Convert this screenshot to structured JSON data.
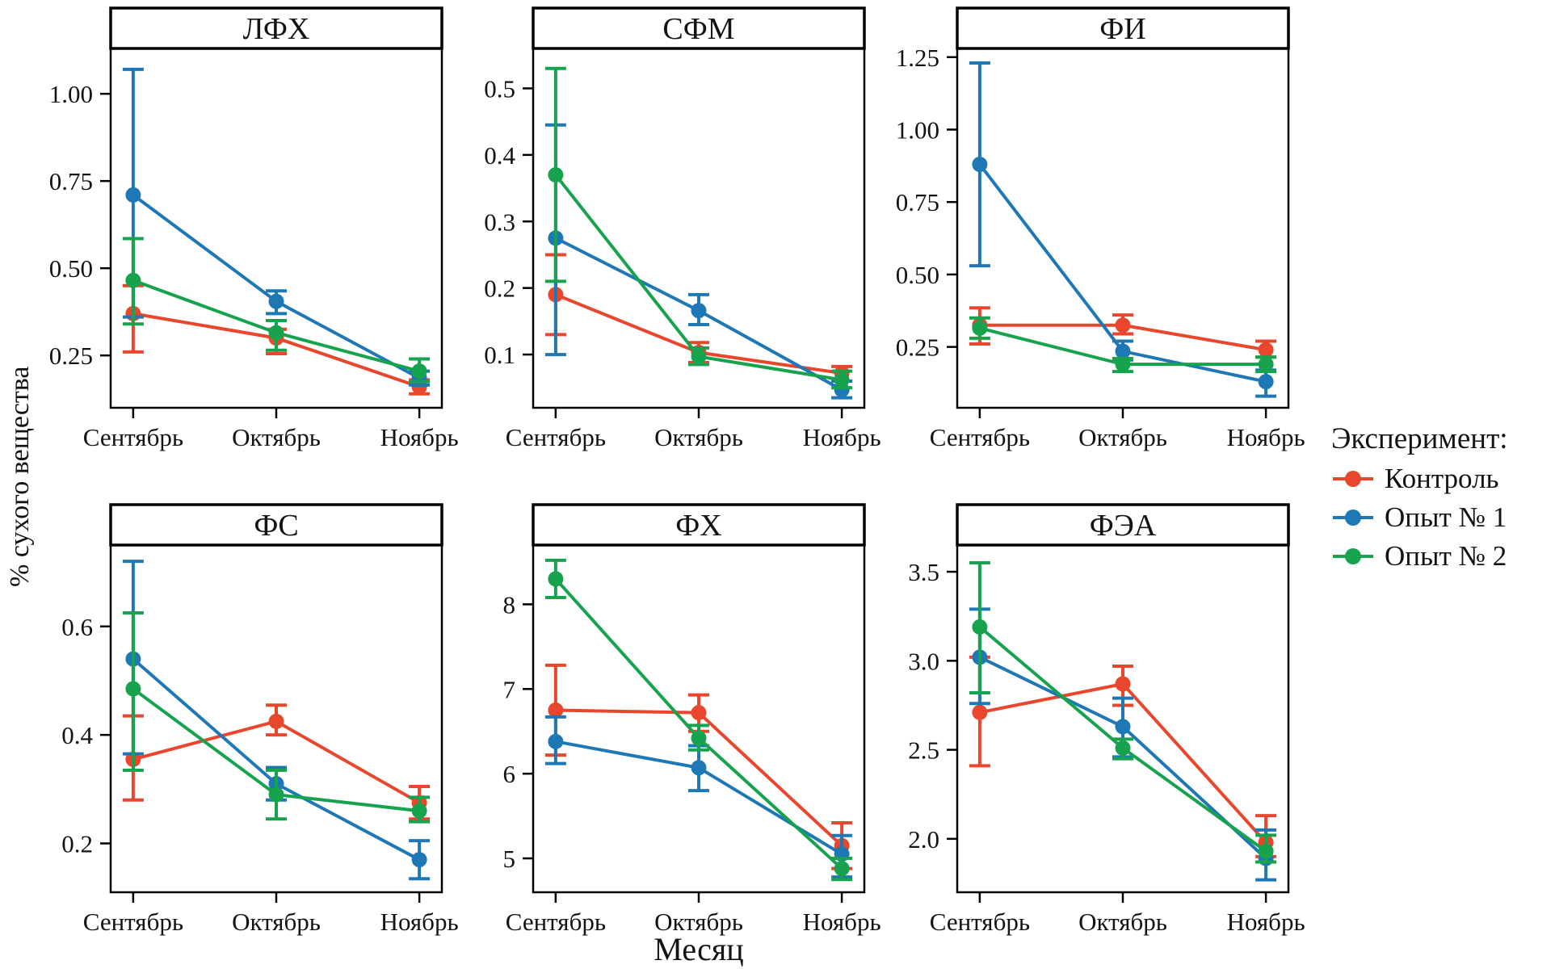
{
  "figure": {
    "y_axis_label": "% сухого вещества",
    "x_axis_label": "Месяц",
    "legend": {
      "title": "Эксперимент:",
      "items": [
        {
          "label": "Контроль",
          "color": "#E8462D"
        },
        {
          "label": "Опыт № 1",
          "color": "#1E78B5"
        },
        {
          "label": "Опыт № 2",
          "color": "#17A34E"
        }
      ]
    }
  },
  "chart_data": [
    {
      "type": "line",
      "title": "ЛФХ",
      "categories": [
        "Сентябрь",
        "Октябрь",
        "Ноябрь"
      ],
      "ylim": [
        0.1,
        1.13
      ],
      "yticks": [
        0.25,
        0.5,
        0.75,
        1.0
      ],
      "ytick_labels": [
        "0.25",
        "0.50",
        "0.75",
        "1.00"
      ],
      "series": [
        {
          "name": "Контроль",
          "color": "#E8462D",
          "values": [
            0.37,
            0.3,
            0.16
          ],
          "err_low": [
            0.26,
            0.255,
            0.14
          ],
          "err_high": [
            0.45,
            0.325,
            0.18
          ]
        },
        {
          "name": "Опыт № 1",
          "color": "#1E78B5",
          "values": [
            0.71,
            0.405,
            0.185
          ],
          "err_low": [
            0.36,
            0.37,
            0.165
          ],
          "err_high": [
            1.07,
            0.435,
            0.205
          ]
        },
        {
          "name": "Опыт № 2",
          "color": "#17A34E",
          "values": [
            0.465,
            0.315,
            0.205
          ],
          "err_low": [
            0.34,
            0.265,
            0.175
          ],
          "err_high": [
            0.585,
            0.35,
            0.24
          ]
        }
      ]
    },
    {
      "type": "line",
      "title": "СФМ",
      "categories": [
        "Сентябрь",
        "Октябрь",
        "Ноябрь"
      ],
      "ylim": [
        0.02,
        0.56
      ],
      "yticks": [
        0.1,
        0.2,
        0.3,
        0.4,
        0.5
      ],
      "ytick_labels": [
        "0.1",
        "0.2",
        "0.3",
        "0.4",
        "0.5"
      ],
      "series": [
        {
          "name": "Контроль",
          "color": "#E8462D",
          "values": [
            0.19,
            0.103,
            0.072
          ],
          "err_low": [
            0.13,
            0.088,
            0.06
          ],
          "err_high": [
            0.25,
            0.118,
            0.082
          ]
        },
        {
          "name": "Опыт № 1",
          "color": "#1E78B5",
          "values": [
            0.275,
            0.166,
            0.047
          ],
          "err_low": [
            0.1,
            0.145,
            0.035
          ],
          "err_high": [
            0.445,
            0.19,
            0.06
          ]
        },
        {
          "name": "Опыт № 2",
          "color": "#17A34E",
          "values": [
            0.37,
            0.097,
            0.062
          ],
          "err_low": [
            0.21,
            0.085,
            0.05
          ],
          "err_high": [
            0.53,
            0.11,
            0.075
          ]
        }
      ]
    },
    {
      "type": "line",
      "title": "ФИ",
      "categories": [
        "Сентябрь",
        "Октябрь",
        "Ноябрь"
      ],
      "ylim": [
        0.04,
        1.28
      ],
      "yticks": [
        0.25,
        0.5,
        0.75,
        1.0,
        1.25
      ],
      "ytick_labels": [
        "0.25",
        "0.50",
        "0.75",
        "1.00",
        "1.25"
      ],
      "series": [
        {
          "name": "Контроль",
          "color": "#E8462D",
          "values": [
            0.325,
            0.325,
            0.24
          ],
          "err_low": [
            0.26,
            0.295,
            0.215
          ],
          "err_high": [
            0.385,
            0.36,
            0.27
          ]
        },
        {
          "name": "Опыт № 1",
          "color": "#1E78B5",
          "values": [
            0.88,
            0.235,
            0.13
          ],
          "err_low": [
            0.53,
            0.205,
            0.08
          ],
          "err_high": [
            1.23,
            0.27,
            0.17
          ]
        },
        {
          "name": "Опыт № 2",
          "color": "#17A34E",
          "values": [
            0.315,
            0.19,
            0.19
          ],
          "err_low": [
            0.28,
            0.165,
            0.165
          ],
          "err_high": [
            0.35,
            0.21,
            0.215
          ]
        }
      ]
    },
    {
      "type": "line",
      "title": "ФС",
      "categories": [
        "Сентябрь",
        "Октябрь",
        "Ноябрь"
      ],
      "ylim": [
        0.11,
        0.75
      ],
      "yticks": [
        0.2,
        0.4,
        0.6
      ],
      "ytick_labels": [
        "0.2",
        "0.4",
        "0.6"
      ],
      "series": [
        {
          "name": "Контроль",
          "color": "#E8462D",
          "values": [
            0.355,
            0.425,
            0.275
          ],
          "err_low": [
            0.28,
            0.4,
            0.245
          ],
          "err_high": [
            0.435,
            0.455,
            0.305
          ]
        },
        {
          "name": "Опыт № 1",
          "color": "#1E78B5",
          "values": [
            0.54,
            0.31,
            0.17
          ],
          "err_low": [
            0.365,
            0.28,
            0.135
          ],
          "err_high": [
            0.72,
            0.34,
            0.205
          ]
        },
        {
          "name": "Опыт № 2",
          "color": "#17A34E",
          "values": [
            0.485,
            0.29,
            0.26
          ],
          "err_low": [
            0.335,
            0.245,
            0.24
          ],
          "err_high": [
            0.625,
            0.335,
            0.285
          ]
        }
      ]
    },
    {
      "type": "line",
      "title": "ФХ",
      "categories": [
        "Сентябрь",
        "Октябрь",
        "Ноябрь"
      ],
      "ylim": [
        4.6,
        8.7
      ],
      "yticks": [
        5,
        6,
        7,
        8
      ],
      "ytick_labels": [
        "5",
        "6",
        "7",
        "8"
      ],
      "series": [
        {
          "name": "Контроль",
          "color": "#E8462D",
          "values": [
            6.75,
            6.72,
            5.15
          ],
          "err_low": [
            6.22,
            6.5,
            4.88
          ],
          "err_high": [
            7.28,
            6.93,
            5.42
          ]
        },
        {
          "name": "Опыт № 1",
          "color": "#1E78B5",
          "values": [
            6.38,
            6.07,
            5.05
          ],
          "err_low": [
            6.12,
            5.8,
            4.78
          ],
          "err_high": [
            6.67,
            6.33,
            5.27
          ]
        },
        {
          "name": "Опыт № 2",
          "color": "#17A34E",
          "values": [
            8.3,
            6.42,
            4.88
          ],
          "err_low": [
            8.08,
            6.28,
            4.75
          ],
          "err_high": [
            8.52,
            6.57,
            5.0
          ]
        }
      ]
    },
    {
      "type": "line",
      "title": "ФЭА",
      "categories": [
        "Сентябрь",
        "Октябрь",
        "Ноябрь"
      ],
      "ylim": [
        1.7,
        3.65
      ],
      "yticks": [
        2.0,
        2.5,
        3.0,
        3.5
      ],
      "ytick_labels": [
        "2.0",
        "2.5",
        "3.0",
        "3.5"
      ],
      "series": [
        {
          "name": "Контроль",
          "color": "#E8462D",
          "values": [
            2.71,
            2.87,
            1.98
          ],
          "err_low": [
            2.41,
            2.75,
            1.9
          ],
          "err_high": [
            3.02,
            2.97,
            2.13
          ]
        },
        {
          "name": "Опыт № 1",
          "color": "#1E78B5",
          "values": [
            3.02,
            2.63,
            1.89
          ],
          "err_low": [
            2.76,
            2.46,
            1.77
          ],
          "err_high": [
            3.29,
            2.79,
            2.05
          ]
        },
        {
          "name": "Опыт № 2",
          "color": "#17A34E",
          "values": [
            3.19,
            2.51,
            1.93
          ],
          "err_low": [
            2.82,
            2.45,
            1.87
          ],
          "err_high": [
            3.55,
            2.56,
            2.02
          ]
        }
      ]
    }
  ]
}
